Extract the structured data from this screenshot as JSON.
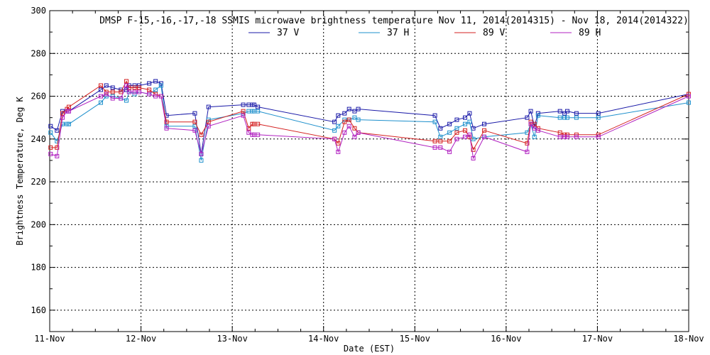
{
  "chart_data": {
    "type": "line",
    "title": "DMSP F-15,-16,-17,-18 SSMIS microwave brightness temperature Nov 11, 2014(2014315) - Nov 18, 2014(2014322)",
    "xlabel": "Date (EST)",
    "ylabel": "Brightness Temperature, Deg K",
    "xlim": [
      0,
      7
    ],
    "ylim": [
      150,
      300
    ],
    "x_ticks": [
      0,
      1,
      2,
      3,
      4,
      5,
      6,
      7
    ],
    "x_tick_labels": [
      "11-Nov",
      "12-Nov",
      "13-Nov",
      "14-Nov",
      "15-Nov",
      "16-Nov",
      "17-Nov",
      "18-Nov"
    ],
    "y_ticks": [
      160,
      180,
      200,
      220,
      240,
      260,
      280,
      300
    ],
    "y_tick_labels": [
      "160",
      "180",
      "200",
      "220",
      "240",
      "260",
      "280",
      "300"
    ],
    "grid": true,
    "legend_position": "top-center",
    "x": [
      0.01,
      0.08,
      0.14,
      0.19,
      0.21,
      0.56,
      0.62,
      0.69,
      0.78,
      0.84,
      0.87,
      0.93,
      0.98,
      1.09,
      1.16,
      1.22,
      1.28,
      1.59,
      1.66,
      1.74,
      2.12,
      2.18,
      2.22,
      2.24,
      2.28,
      3.12,
      3.16,
      3.23,
      3.28,
      3.34,
      3.38,
      4.22,
      4.28,
      4.38,
      4.46,
      4.55,
      4.6,
      4.64,
      4.76,
      5.23,
      5.27,
      5.31,
      5.35,
      5.59,
      5.64,
      5.67,
      5.77,
      6.01,
      7.0
    ],
    "series": [
      {
        "name": "37 V",
        "color": "#1a1aa8",
        "values": [
          246,
          244,
          253,
          253,
          253,
          263,
          265,
          264,
          263,
          263,
          265,
          265,
          265,
          266,
          267,
          266,
          251,
          252,
          233,
          255,
          256,
          256,
          256,
          256,
          255,
          248,
          251,
          252,
          254,
          253,
          254,
          251,
          245,
          247,
          249,
          250,
          252,
          245,
          247,
          250,
          253,
          246,
          252,
          253,
          252,
          253,
          252,
          252,
          261
        ]
      },
      {
        "name": "37 H",
        "color": "#1e90cc",
        "values": [
          243,
          239,
          247,
          247,
          247,
          257,
          260,
          260,
          259,
          258,
          262,
          261,
          262,
          261,
          263,
          265,
          246,
          246,
          230,
          249,
          252,
          253,
          253,
          253,
          253,
          244,
          246,
          249,
          249,
          250,
          249,
          248,
          241,
          243,
          245,
          247,
          248,
          240,
          241,
          243,
          247,
          241,
          251,
          250,
          250,
          250,
          250,
          250,
          257
        ]
      },
      {
        "name": "89 V",
        "color": "#d42020",
        "values": [
          236,
          236,
          252,
          254,
          255,
          265,
          262,
          262,
          262,
          267,
          264,
          264,
          264,
          263,
          261,
          260,
          248,
          248,
          242,
          248,
          253,
          245,
          247,
          247,
          247,
          240,
          238,
          248,
          249,
          245,
          243,
          239,
          239,
          239,
          243,
          244,
          241,
          235,
          244,
          238,
          248,
          247,
          245,
          243,
          242,
          242,
          242,
          242,
          261
        ]
      },
      {
        "name": "89 H",
        "color": "#b020c0",
        "values": [
          233,
          232,
          250,
          253,
          253,
          260,
          261,
          259,
          259,
          265,
          262,
          262,
          262,
          261,
          260,
          260,
          245,
          244,
          233,
          246,
          251,
          243,
          242,
          242,
          242,
          240,
          234,
          243,
          246,
          241,
          243,
          236,
          236,
          234,
          240,
          241,
          242,
          231,
          241,
          234,
          247,
          245,
          244,
          241,
          241,
          241,
          241,
          241,
          260
        ]
      }
    ]
  }
}
